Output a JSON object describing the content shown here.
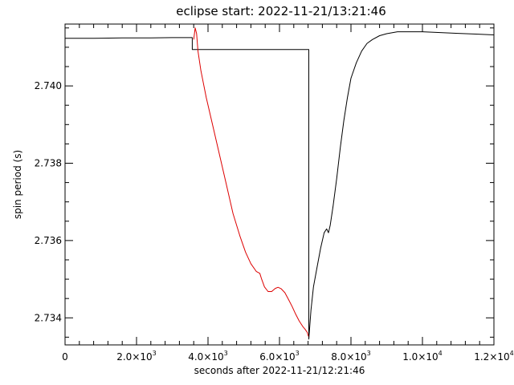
{
  "chart_data": {
    "type": "line",
    "title": "eclipse start: 2022-11-21/13:21:46",
    "xlabel": "seconds after 2022-11-21/12:21:46",
    "ylabel": "spin period (s)",
    "xlim": [
      0,
      12000
    ],
    "ylim": [
      2.7333,
      2.7416
    ],
    "grid": false,
    "x_ticks": [
      {
        "value": 0,
        "mant": "0",
        "exp": ""
      },
      {
        "value": 2000,
        "mant": "2.0×10",
        "exp": "3"
      },
      {
        "value": 4000,
        "mant": "4.0×10",
        "exp": "3"
      },
      {
        "value": 6000,
        "mant": "6.0×10",
        "exp": "3"
      },
      {
        "value": 8000,
        "mant": "8.0×10",
        "exp": "3"
      },
      {
        "value": 10000,
        "mant": "1.0×10",
        "exp": "4"
      },
      {
        "value": 12000,
        "mant": "1.2×10",
        "exp": "4"
      }
    ],
    "y_ticks": [
      {
        "value": 2.734,
        "label": "2.734"
      },
      {
        "value": 2.736,
        "label": "2.736"
      },
      {
        "value": 2.738,
        "label": "2.738"
      },
      {
        "value": 2.74,
        "label": "2.740"
      }
    ],
    "series": [
      {
        "color": "#000000",
        "points": [
          [
            0,
            2.74123
          ],
          [
            800,
            2.74123
          ],
          [
            1600,
            2.74124
          ],
          [
            2400,
            2.74124
          ],
          [
            3000,
            2.74125
          ],
          [
            3560,
            2.74125
          ],
          [
            3560,
            2.74094
          ],
          [
            6820,
            2.74094
          ],
          [
            6820,
            2.73345
          ],
          [
            6880,
            2.7342
          ],
          [
            6950,
            2.7348
          ],
          [
            7050,
            2.7353
          ],
          [
            7150,
            2.7358
          ],
          [
            7250,
            2.7362
          ],
          [
            7320,
            2.7363
          ],
          [
            7370,
            2.7362
          ],
          [
            7420,
            2.7364
          ],
          [
            7500,
            2.7369
          ],
          [
            7600,
            2.7376
          ],
          [
            7700,
            2.7384
          ],
          [
            7800,
            2.7391
          ],
          [
            7900,
            2.7397
          ],
          [
            8000,
            2.7402
          ],
          [
            8150,
            2.7406
          ],
          [
            8300,
            2.7409
          ],
          [
            8450,
            2.7411
          ],
          [
            8600,
            2.7412
          ],
          [
            8800,
            2.7413
          ],
          [
            9000,
            2.74135
          ],
          [
            9300,
            2.7414
          ],
          [
            9600,
            2.7414
          ],
          [
            10000,
            2.7414
          ],
          [
            10500,
            2.74138
          ],
          [
            11000,
            2.74136
          ],
          [
            11500,
            2.74134
          ],
          [
            12000,
            2.74132
          ]
        ]
      },
      {
        "color": "#dd0000",
        "points": [
          [
            3600,
            2.7412
          ],
          [
            3640,
            2.7415
          ],
          [
            3680,
            2.74135
          ],
          [
            3720,
            2.7409
          ],
          [
            3800,
            2.7404
          ],
          [
            3950,
            2.7397
          ],
          [
            4100,
            2.7391
          ],
          [
            4300,
            2.7383
          ],
          [
            4500,
            2.7375
          ],
          [
            4700,
            2.7367
          ],
          [
            4900,
            2.7361
          ],
          [
            5050,
            2.7357
          ],
          [
            5200,
            2.7354
          ],
          [
            5350,
            2.7352
          ],
          [
            5450,
            2.73515
          ],
          [
            5500,
            2.735
          ],
          [
            5580,
            2.7348
          ],
          [
            5680,
            2.73468
          ],
          [
            5780,
            2.73468
          ],
          [
            5880,
            2.73476
          ],
          [
            5960,
            2.73479
          ],
          [
            6050,
            2.73475
          ],
          [
            6150,
            2.73465
          ],
          [
            6250,
            2.73448
          ],
          [
            6350,
            2.7343
          ],
          [
            6450,
            2.7341
          ],
          [
            6550,
            2.73392
          ],
          [
            6650,
            2.73378
          ],
          [
            6720,
            2.7337
          ],
          [
            6780,
            2.73362
          ],
          [
            6810,
            2.73352
          ]
        ]
      }
    ]
  }
}
